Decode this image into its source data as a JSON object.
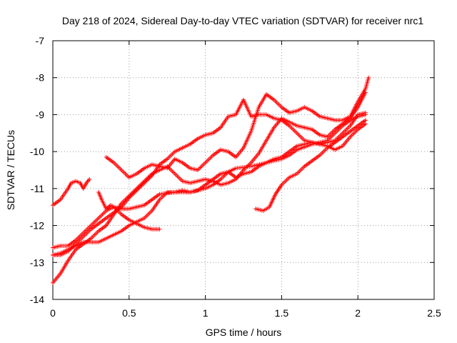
{
  "chart_data": {
    "type": "scatter",
    "title": "Day 218 of 2024, Sidereal Day-to-day VTEC variation (SDTVAR) for receiver nrc1",
    "xlabel": "GPS time / hours",
    "ylabel": "SDTVAR / TECUs",
    "xlim": [
      0,
      2.5
    ],
    "ylim": [
      -14,
      -7
    ],
    "x_ticks": [
      0,
      0.5,
      1,
      1.5,
      2,
      2.5
    ],
    "x_tick_labels": [
      "0",
      "0.5",
      "1",
      "1.5",
      "2",
      "2.5"
    ],
    "y_ticks": [
      -14,
      -13,
      -12,
      -11,
      -10,
      -9,
      -8,
      -7
    ],
    "y_tick_labels": [
      "-14",
      "-13",
      "-12",
      "-11",
      "-10",
      "-9",
      "-8",
      "-7"
    ],
    "grid": true,
    "marker": "+",
    "marker_color": "#ff0000",
    "series": [
      {
        "points": [
          [
            0.0,
            -11.45
          ],
          [
            0.05,
            -11.3
          ],
          [
            0.1,
            -11.0
          ],
          [
            0.12,
            -10.85
          ],
          [
            0.15,
            -10.8
          ],
          [
            0.18,
            -10.85
          ],
          [
            0.2,
            -11.0
          ],
          [
            0.22,
            -10.85
          ],
          [
            0.24,
            -10.75
          ]
        ]
      },
      {
        "points": [
          [
            0.0,
            -12.6
          ],
          [
            0.05,
            -12.55
          ],
          [
            0.1,
            -12.55
          ],
          [
            0.15,
            -12.4
          ],
          [
            0.2,
            -12.2
          ],
          [
            0.25,
            -12.0
          ],
          [
            0.3,
            -11.8
          ],
          [
            0.35,
            -11.6
          ],
          [
            0.4,
            -11.5
          ],
          [
            0.45,
            -11.55
          ],
          [
            0.5,
            -11.55
          ],
          [
            0.55,
            -11.5
          ],
          [
            0.6,
            -11.45
          ],
          [
            0.65,
            -11.3
          ],
          [
            0.7,
            -11.15
          ],
          [
            0.8,
            -11.1
          ],
          [
            0.9,
            -11.1
          ],
          [
            1.0,
            -11.0
          ],
          [
            1.05,
            -10.9
          ],
          [
            1.1,
            -10.75
          ],
          [
            1.15,
            -10.55
          ],
          [
            1.2,
            -10.45
          ],
          [
            1.3,
            -10.4
          ],
          [
            1.4,
            -10.3
          ],
          [
            1.5,
            -10.2
          ],
          [
            1.55,
            -10.1
          ],
          [
            1.6,
            -9.95
          ],
          [
            1.7,
            -9.8
          ],
          [
            1.8,
            -9.7
          ],
          [
            1.85,
            -9.5
          ],
          [
            1.9,
            -9.3
          ],
          [
            1.95,
            -9.15
          ],
          [
            2.0,
            -9.05
          ],
          [
            2.05,
            -9.0
          ]
        ]
      },
      {
        "points": [
          [
            0.0,
            -12.8
          ],
          [
            0.05,
            -12.8
          ],
          [
            0.1,
            -12.7
          ],
          [
            0.15,
            -12.5
          ],
          [
            0.2,
            -12.3
          ],
          [
            0.25,
            -12.1
          ],
          [
            0.3,
            -11.95
          ],
          [
            0.35,
            -11.8
          ],
          [
            0.4,
            -11.65
          ],
          [
            0.45,
            -11.5
          ],
          [
            0.5,
            -11.25
          ],
          [
            0.55,
            -11.05
          ],
          [
            0.6,
            -10.85
          ],
          [
            0.65,
            -10.65
          ],
          [
            0.7,
            -10.35
          ],
          [
            0.75,
            -10.2
          ],
          [
            0.8,
            -10.0
          ],
          [
            0.85,
            -9.9
          ],
          [
            0.9,
            -9.8
          ],
          [
            0.95,
            -9.65
          ],
          [
            1.0,
            -9.55
          ],
          [
            1.05,
            -9.5
          ],
          [
            1.1,
            -9.35
          ],
          [
            1.15,
            -9.05
          ],
          [
            1.2,
            -9.0
          ],
          [
            1.25,
            -8.6
          ],
          [
            1.3,
            -9.05
          ],
          [
            1.35,
            -9.0
          ],
          [
            1.4,
            -9.0
          ],
          [
            1.45,
            -9.1
          ],
          [
            1.5,
            -9.15
          ],
          [
            1.55,
            -9.3
          ],
          [
            1.6,
            -9.5
          ],
          [
            1.65,
            -9.7
          ],
          [
            1.7,
            -9.75
          ],
          [
            1.75,
            -9.8
          ],
          [
            1.8,
            -9.85
          ],
          [
            1.85,
            -9.95
          ],
          [
            1.9,
            -9.85
          ],
          [
            1.95,
            -9.6
          ],
          [
            2.0,
            -9.4
          ],
          [
            2.05,
            -9.25
          ]
        ]
      },
      {
        "points": [
          [
            0.0,
            -12.8
          ],
          [
            0.05,
            -12.75
          ],
          [
            0.1,
            -12.65
          ],
          [
            0.15,
            -12.55
          ],
          [
            0.2,
            -12.45
          ],
          [
            0.25,
            -12.45
          ],
          [
            0.3,
            -12.45
          ],
          [
            0.35,
            -12.35
          ],
          [
            0.4,
            -12.25
          ],
          [
            0.45,
            -12.15
          ],
          [
            0.5,
            -12.0
          ],
          [
            0.55,
            -11.9
          ],
          [
            0.6,
            -11.8
          ],
          [
            0.65,
            -11.6
          ],
          [
            0.7,
            -11.3
          ],
          [
            0.75,
            -11.1
          ],
          [
            0.8,
            -11.1
          ],
          [
            0.85,
            -11.05
          ],
          [
            0.9,
            -11.1
          ],
          [
            0.95,
            -11.05
          ],
          [
            1.0,
            -10.9
          ],
          [
            1.05,
            -10.75
          ],
          [
            1.1,
            -10.6
          ],
          [
            1.15,
            -10.55
          ],
          [
            1.2,
            -10.7
          ],
          [
            1.25,
            -10.6
          ],
          [
            1.3,
            -10.55
          ],
          [
            1.35,
            -10.4
          ],
          [
            1.4,
            -10.3
          ],
          [
            1.45,
            -10.2
          ],
          [
            1.5,
            -10.15
          ],
          [
            1.55,
            -10.0
          ],
          [
            1.6,
            -9.85
          ],
          [
            1.65,
            -9.8
          ],
          [
            1.7,
            -9.75
          ],
          [
            1.75,
            -9.8
          ],
          [
            1.8,
            -9.75
          ],
          [
            1.85,
            -9.7
          ],
          [
            1.9,
            -9.5
          ],
          [
            1.95,
            -9.3
          ],
          [
            2.0,
            -9.0
          ],
          [
            2.05,
            -8.95
          ]
        ]
      },
      {
        "points": [
          [
            0.0,
            -13.55
          ],
          [
            0.05,
            -13.3
          ],
          [
            0.1,
            -12.95
          ],
          [
            0.15,
            -12.65
          ],
          [
            0.2,
            -12.5
          ],
          [
            0.25,
            -12.35
          ],
          [
            0.3,
            -12.15
          ],
          [
            0.35,
            -12.0
          ],
          [
            0.4,
            -11.7
          ],
          [
            0.45,
            -11.4
          ],
          [
            0.5,
            -11.2
          ],
          [
            0.55,
            -11.0
          ],
          [
            0.6,
            -10.8
          ],
          [
            0.65,
            -10.6
          ],
          [
            0.7,
            -10.5
          ],
          [
            0.75,
            -10.4
          ],
          [
            0.8,
            -10.6
          ],
          [
            0.85,
            -10.8
          ],
          [
            0.9,
            -10.85
          ],
          [
            0.95,
            -10.8
          ],
          [
            1.0,
            -10.75
          ],
          [
            1.05,
            -10.8
          ],
          [
            1.1,
            -10.9
          ],
          [
            1.15,
            -10.85
          ],
          [
            1.2,
            -10.75
          ],
          [
            1.25,
            -10.5
          ],
          [
            1.3,
            -10.3
          ],
          [
            1.35,
            -10.05
          ],
          [
            1.4,
            -9.7
          ],
          [
            1.45,
            -9.35
          ],
          [
            1.5,
            -9.1
          ],
          [
            1.55,
            -9.2
          ],
          [
            1.6,
            -9.3
          ],
          [
            1.65,
            -9.35
          ],
          [
            1.7,
            -9.4
          ],
          [
            1.75,
            -9.55
          ],
          [
            1.8,
            -9.6
          ],
          [
            1.85,
            -9.4
          ],
          [
            1.9,
            -9.25
          ],
          [
            1.95,
            -9.1
          ],
          [
            2.0,
            -8.8
          ],
          [
            2.05,
            -8.4
          ]
        ]
      },
      {
        "points": [
          [
            0.35,
            -10.15
          ],
          [
            0.4,
            -10.3
          ],
          [
            0.45,
            -10.5
          ],
          [
            0.5,
            -10.7
          ],
          [
            0.55,
            -10.6
          ],
          [
            0.6,
            -10.45
          ],
          [
            0.65,
            -10.35
          ],
          [
            0.7,
            -10.4
          ],
          [
            0.75,
            -10.45
          ],
          [
            0.8,
            -10.2
          ],
          [
            0.85,
            -10.3
          ],
          [
            0.9,
            -10.45
          ],
          [
            0.95,
            -10.5
          ],
          [
            1.0,
            -10.3
          ],
          [
            1.05,
            -10.1
          ],
          [
            1.1,
            -9.95
          ],
          [
            1.15,
            -10.0
          ],
          [
            1.2,
            -10.15
          ],
          [
            1.25,
            -9.9
          ],
          [
            1.3,
            -9.45
          ],
          [
            1.35,
            -8.8
          ],
          [
            1.4,
            -8.45
          ],
          [
            1.45,
            -8.6
          ],
          [
            1.5,
            -8.8
          ],
          [
            1.55,
            -8.95
          ],
          [
            1.6,
            -8.9
          ],
          [
            1.65,
            -8.8
          ],
          [
            1.7,
            -8.9
          ],
          [
            1.75,
            -9.05
          ],
          [
            1.8,
            -9.1
          ],
          [
            1.85,
            -9.15
          ],
          [
            1.9,
            -9.15
          ],
          [
            1.95,
            -9.05
          ],
          [
            2.0,
            -8.65
          ],
          [
            2.05,
            -8.3
          ],
          [
            2.07,
            -8.0
          ]
        ]
      },
      {
        "points": [
          [
            0.3,
            -11.1
          ],
          [
            0.32,
            -11.3
          ],
          [
            0.35,
            -11.55
          ],
          [
            0.38,
            -11.45
          ],
          [
            0.4,
            -11.5
          ],
          [
            0.45,
            -11.7
          ],
          [
            0.5,
            -11.85
          ],
          [
            0.55,
            -11.95
          ],
          [
            0.6,
            -12.05
          ],
          [
            0.65,
            -12.1
          ],
          [
            0.7,
            -12.1
          ]
        ]
      },
      {
        "points": [
          [
            1.33,
            -11.55
          ],
          [
            1.38,
            -11.6
          ],
          [
            1.42,
            -11.5
          ],
          [
            1.46,
            -11.15
          ],
          [
            1.5,
            -10.9
          ],
          [
            1.55,
            -10.7
          ],
          [
            1.6,
            -10.6
          ],
          [
            1.65,
            -10.4
          ],
          [
            1.7,
            -10.25
          ],
          [
            1.75,
            -10.1
          ],
          [
            1.8,
            -9.9
          ],
          [
            1.85,
            -9.75
          ],
          [
            1.9,
            -9.6
          ],
          [
            1.95,
            -9.45
          ],
          [
            2.0,
            -9.3
          ],
          [
            2.05,
            -9.15
          ]
        ]
      }
    ]
  }
}
